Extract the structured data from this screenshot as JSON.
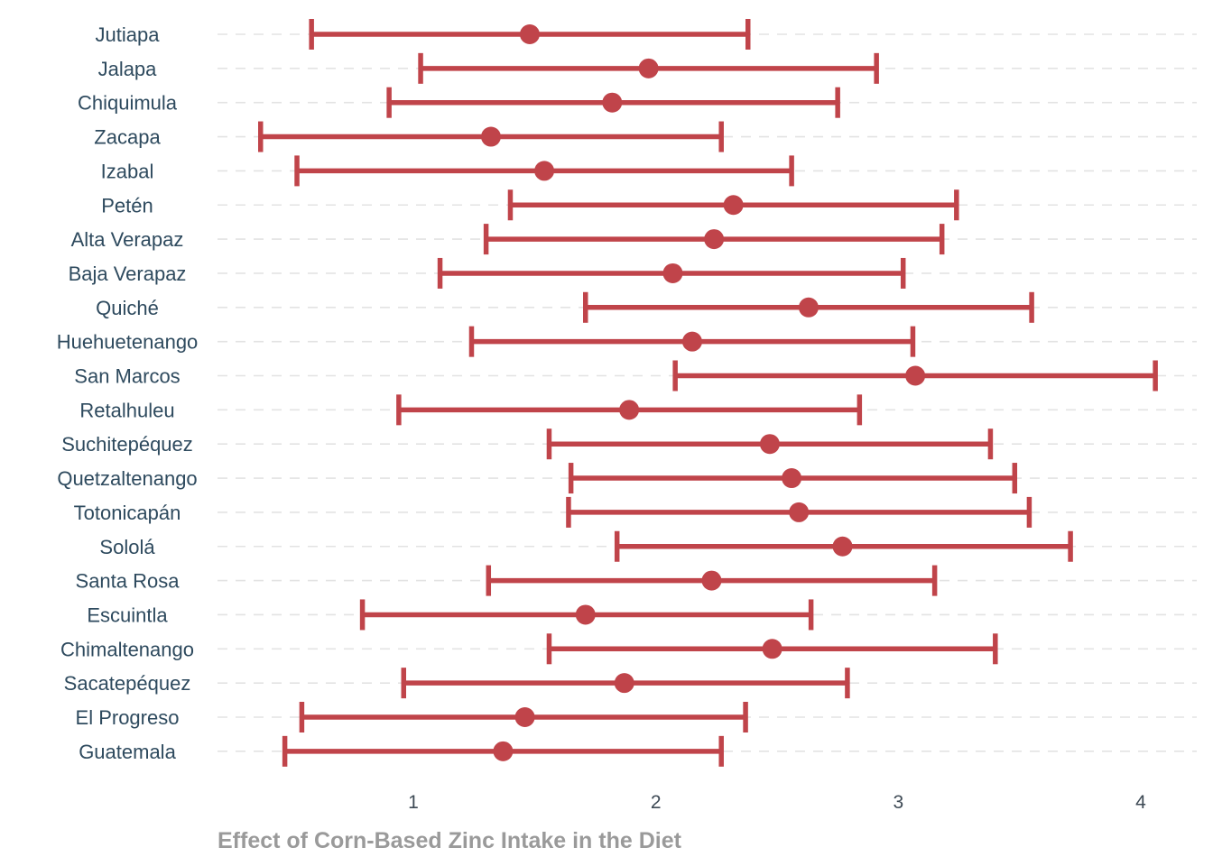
{
  "chart_data": {
    "type": "errorbar",
    "title": "",
    "xlabel": "Effect of Corn-Based Zinc Intake in the Diet",
    "ylabel": "",
    "xlim": [
      0.3,
      4.25
    ],
    "xticks": [
      1,
      2,
      3,
      4
    ],
    "grid": "horizontal-dashed",
    "legend": "none",
    "colors": {
      "mark": "#c0444a",
      "grid": "#e3e3e3",
      "label": "#2e4a5e",
      "axis_title": "#9a9a9a"
    },
    "categories": [
      "Jutiapa",
      "Jalapa",
      "Chiquimula",
      "Zacapa",
      "Izabal",
      "Petén",
      "Alta Verapaz",
      "Baja Verapaz",
      "Quiché",
      "Huehuetenango",
      "San Marcos",
      "Retalhuleu",
      "Suchitepéquez",
      "Quetzaltenango",
      "Totonicapán",
      "Sololá",
      "Santa Rosa",
      "Escuintla",
      "Chimaltenango",
      "Sacatepéquez",
      "El Progreso",
      "Guatemala"
    ],
    "series": [
      {
        "estimate": [
          1.48,
          1.97,
          1.82,
          1.32,
          1.54,
          2.32,
          2.24,
          2.07,
          2.63,
          2.15,
          3.07,
          1.89,
          2.47,
          2.56,
          2.59,
          2.77,
          2.23,
          1.71,
          2.48,
          1.87,
          1.46,
          1.37
        ],
        "lower": [
          0.58,
          1.03,
          0.9,
          0.37,
          0.52,
          1.4,
          1.3,
          1.11,
          1.71,
          1.24,
          2.08,
          0.94,
          1.56,
          1.65,
          1.64,
          1.84,
          1.31,
          0.79,
          1.56,
          0.96,
          0.54,
          0.47
        ],
        "upper": [
          2.38,
          2.91,
          2.75,
          2.27,
          2.56,
          3.24,
          3.18,
          3.02,
          3.55,
          3.06,
          4.06,
          2.84,
          3.38,
          3.48,
          3.54,
          3.71,
          3.15,
          2.64,
          3.4,
          2.79,
          2.37,
          2.27
        ]
      }
    ]
  }
}
